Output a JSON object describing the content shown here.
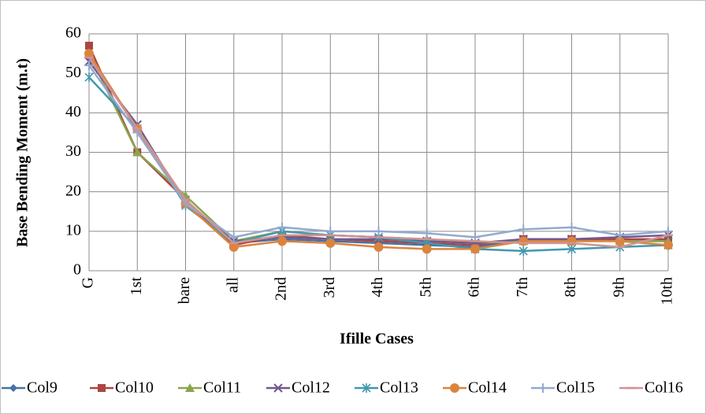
{
  "chart_data": {
    "type": "line",
    "x_label": "Ifille Cases",
    "y_label": "Base Bending Moment (m.t)",
    "categories": [
      "G",
      "1st",
      "bare",
      "all",
      "2nd",
      "3rd",
      "4th",
      "5th",
      "6th",
      "7th",
      "8th",
      "9th",
      "10th"
    ],
    "ylim": [
      0,
      60
    ],
    "yticks": [
      0,
      10,
      20,
      30,
      40,
      50,
      60
    ],
    "grid": true,
    "xgrid": true,
    "legend": "bottom",
    "series": [
      {
        "name": "Col9",
        "color": "#4572a7",
        "marker": "diamond",
        "values": [
          54,
          36,
          17,
          7,
          8,
          7.5,
          7,
          6.5,
          6,
          8,
          8,
          7.5,
          7.5
        ]
      },
      {
        "name": "Col10",
        "color": "#aa4643",
        "marker": "square",
        "values": [
          57,
          30,
          18,
          6.5,
          9,
          8,
          7.5,
          7,
          6.5,
          8,
          8,
          8,
          8
        ]
      },
      {
        "name": "Col11",
        "color": "#89a54e",
        "marker": "triangle",
        "values": [
          55,
          30,
          19,
          7.5,
          10,
          9,
          8.5,
          8,
          7,
          7.5,
          7.5,
          7.5,
          7.5
        ]
      },
      {
        "name": "Col12",
        "color": "#71588f",
        "marker": "x",
        "values": [
          53,
          37,
          17,
          7.5,
          8.5,
          8,
          8,
          7.5,
          7,
          8,
          8,
          8.5,
          9
        ]
      },
      {
        "name": "Col13",
        "color": "#4198af",
        "marker": "star",
        "values": [
          49,
          36,
          16.5,
          7,
          10,
          9,
          8.5,
          7,
          5.5,
          5,
          5.5,
          6,
          6.5
        ]
      },
      {
        "name": "Col14",
        "color": "#db843d",
        "marker": "circle",
        "values": [
          55,
          36,
          17,
          6,
          7.5,
          7,
          6,
          5.5,
          5.5,
          7.5,
          7.5,
          7.5,
          6.5
        ]
      },
      {
        "name": "Col15",
        "color": "#93a9cf",
        "marker": "plus",
        "values": [
          52,
          35,
          17,
          8.5,
          11,
          10,
          10,
          9.5,
          8.5,
          10.5,
          11,
          9,
          10
        ]
      },
      {
        "name": "Col16",
        "color": "#d19392",
        "marker": "dash",
        "values": [
          54,
          36,
          18,
          7,
          9,
          9,
          8.5,
          8,
          7.5,
          7,
          7,
          6,
          9
        ]
      }
    ]
  }
}
